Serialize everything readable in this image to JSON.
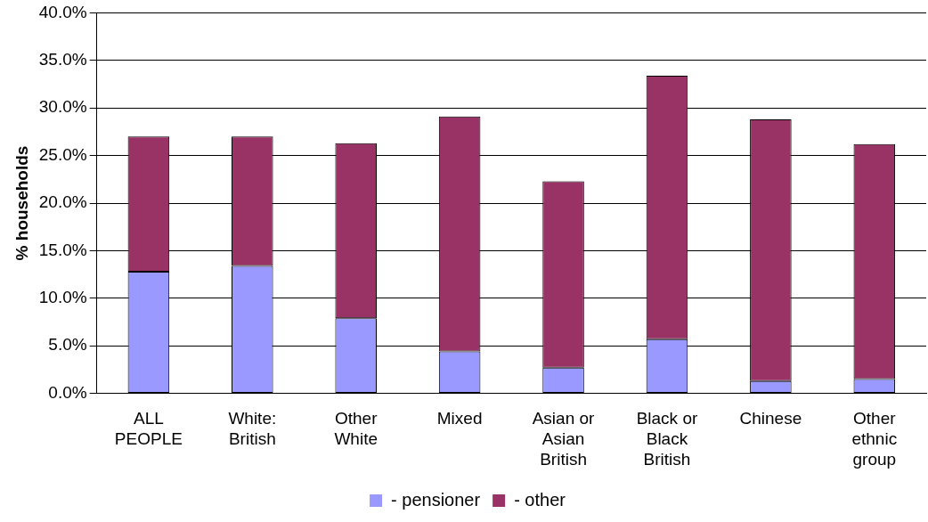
{
  "chart_data": {
    "type": "bar",
    "stacked": true,
    "ylabel": "% households",
    "categories": [
      "ALL PEOPLE",
      "White: British",
      "Other White",
      "Mixed",
      "Asian or Asian British",
      "Black or Black British",
      "Chinese",
      "Other ethnic group"
    ],
    "series": [
      {
        "name": "- pensioner",
        "color": "#9999ff",
        "values": [
          12.8,
          13.4,
          7.9,
          4.4,
          2.7,
          5.7,
          1.3,
          1.5
        ]
      },
      {
        "name": "- other",
        "color": "#993366",
        "values": [
          14.2,
          13.6,
          18.4,
          24.7,
          19.6,
          27.7,
          27.5,
          24.7
        ]
      }
    ],
    "ylim": [
      0,
      40
    ],
    "yticks": [
      {
        "value": 0,
        "label": "0.0%"
      },
      {
        "value": 5,
        "label": "5.0%"
      },
      {
        "value": 10,
        "label": "10.0%"
      },
      {
        "value": 15,
        "label": "15.0%"
      },
      {
        "value": 20,
        "label": "20.0%"
      },
      {
        "value": 25,
        "label": "25.0%"
      },
      {
        "value": 30,
        "label": "30.0%"
      },
      {
        "value": 35,
        "label": "35.0%"
      },
      {
        "value": 40,
        "label": "40.0%"
      }
    ],
    "grid": "y",
    "legend": "bottom"
  }
}
